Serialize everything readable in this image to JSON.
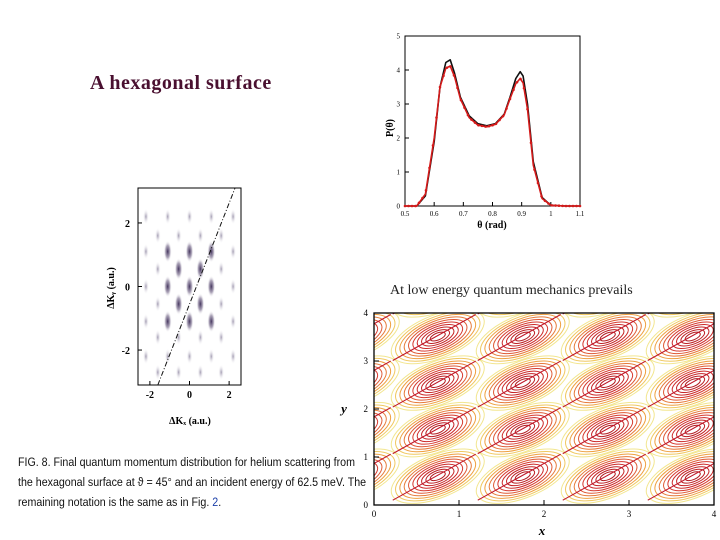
{
  "slide": {
    "title": "A hexagonal surface",
    "energy_note": "At low energy quantum mechanics prevails",
    "caption": {
      "line1": "FIG. 8. Final quantum momentum distribution for helium scattering from",
      "line2": "the hexagonal surface at ϑ = 45° and an incident energy of 62.5 meV. The",
      "line3_a": "remaining notation is the same as in Fig. ",
      "line3_ref": "2",
      "line3_b": "."
    }
  },
  "chart_data": [
    {
      "type": "line",
      "title": "",
      "xlabel": "θ (rad)",
      "ylabel": "P(θ)",
      "xlim": [
        0.5,
        1.1
      ],
      "ylim": [
        0,
        5
      ],
      "x_ticks": [
        "0.5",
        "0.6",
        "0.7",
        "0.8",
        "0.9",
        "1",
        "1.1"
      ],
      "y_ticks": [
        "0",
        "1",
        "2",
        "3",
        "4",
        "5"
      ],
      "series": [
        {
          "name": "black",
          "color": "#111111",
          "x": [
            0.5,
            0.54,
            0.57,
            0.6,
            0.62,
            0.64,
            0.655,
            0.67,
            0.69,
            0.72,
            0.75,
            0.78,
            0.81,
            0.84,
            0.86,
            0.88,
            0.895,
            0.905,
            0.92,
            0.94,
            0.97,
            1.0,
            1.05,
            1.1
          ],
          "y": [
            0,
            0,
            0.3,
            1.9,
            3.5,
            4.22,
            4.3,
            3.9,
            3.2,
            2.65,
            2.42,
            2.36,
            2.42,
            2.7,
            3.2,
            3.75,
            3.95,
            3.82,
            3.0,
            1.3,
            0.25,
            0.02,
            0,
            0
          ]
        },
        {
          "name": "red",
          "color": "#d41a1a",
          "x": [
            0.5,
            0.54,
            0.57,
            0.6,
            0.62,
            0.64,
            0.655,
            0.67,
            0.69,
            0.72,
            0.75,
            0.78,
            0.81,
            0.84,
            0.86,
            0.88,
            0.895,
            0.905,
            0.92,
            0.94,
            0.97,
            1.0,
            1.05,
            1.1
          ],
          "y": [
            0,
            0,
            0.35,
            2.0,
            3.5,
            4.05,
            4.12,
            3.8,
            3.15,
            2.6,
            2.38,
            2.33,
            2.4,
            2.68,
            3.15,
            3.6,
            3.75,
            3.62,
            2.85,
            1.2,
            0.22,
            0.02,
            0,
            0
          ]
        }
      ]
    },
    {
      "type": "heatmap",
      "xlabel": "ΔKₓ (a.u.)",
      "ylabel": "ΔKᵧ (a.u.)",
      "x_ticks": [
        "-2",
        "0",
        "2"
      ],
      "y_ticks": [
        "2",
        "0",
        "-2"
      ],
      "xlim": [
        -2.6,
        2.6
      ],
      "ylim": [
        -3.1,
        3.1
      ]
    },
    {
      "type": "heatmap",
      "xlabel": "x",
      "ylabel": "y",
      "x_ticks": [
        "0",
        "1",
        "2",
        "3",
        "4"
      ],
      "y_ticks": [
        "0",
        "1",
        "2",
        "3",
        "4"
      ],
      "xlim": [
        0,
        4
      ],
      "ylim": [
        0,
        4
      ]
    }
  ]
}
